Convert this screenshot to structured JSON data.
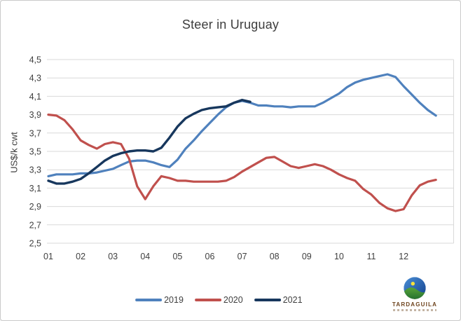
{
  "chart_data": {
    "type": "line",
    "title": "Steer in Uruguay",
    "ylabel": "US$/k cwt",
    "xlabel": "",
    "ylim": [
      2.5,
      4.5
    ],
    "grid": "horizontal",
    "legend_position": "bottom",
    "y_ticks": [
      {
        "label": "4,5",
        "value": 4.5
      },
      {
        "label": "4,3",
        "value": 4.3
      },
      {
        "label": "4,1",
        "value": 4.1
      },
      {
        "label": "3,9",
        "value": 3.9
      },
      {
        "label": "3,7",
        "value": 3.7
      },
      {
        "label": "3,5",
        "value": 3.5
      },
      {
        "label": "3,3",
        "value": 3.3
      },
      {
        "label": "3,1",
        "value": 3.1
      },
      {
        "label": "2,9",
        "value": 2.9
      },
      {
        "label": "2,7",
        "value": 2.7
      },
      {
        "label": "2,5",
        "value": 2.5
      }
    ],
    "x_ticks": [
      {
        "label": "01",
        "value": 1
      },
      {
        "label": "02",
        "value": 2
      },
      {
        "label": "03",
        "value": 3
      },
      {
        "label": "04",
        "value": 4
      },
      {
        "label": "05",
        "value": 5
      },
      {
        "label": "06",
        "value": 6
      },
      {
        "label": "07",
        "value": 7
      },
      {
        "label": "08",
        "value": 8
      },
      {
        "label": "09",
        "value": 9
      },
      {
        "label": "10",
        "value": 10
      },
      {
        "label": "11",
        "value": 11
      },
      {
        "label": "12",
        "value": 12
      }
    ],
    "x_unit": "month (01-12, sub-monthly sampling)",
    "series": [
      {
        "name": "2019",
        "color": "#4f81bd",
        "width": 3.2,
        "x_start": 1,
        "x_step": 0.25,
        "values": [
          3.23,
          3.25,
          3.25,
          3.25,
          3.26,
          3.26,
          3.27,
          3.29,
          3.31,
          3.35,
          3.39,
          3.4,
          3.4,
          3.38,
          3.35,
          3.33,
          3.41,
          3.53,
          3.62,
          3.72,
          3.81,
          3.9,
          3.98,
          4.03,
          4.05,
          4.03,
          4.0,
          4.0,
          3.99,
          3.99,
          3.98,
          3.99,
          3.99,
          3.99,
          4.03,
          4.08,
          4.13,
          4.2,
          4.25,
          4.28,
          4.3,
          4.32,
          4.34,
          4.31,
          4.21,
          4.12,
          4.03,
          3.95,
          3.89
        ]
      },
      {
        "name": "2020",
        "color": "#c0504d",
        "width": 3.2,
        "x_start": 1,
        "x_step": 0.25,
        "values": [
          3.9,
          3.89,
          3.84,
          3.74,
          3.62,
          3.57,
          3.53,
          3.58,
          3.6,
          3.58,
          3.42,
          3.12,
          2.98,
          3.12,
          3.23,
          3.21,
          3.18,
          3.18,
          3.17,
          3.17,
          3.17,
          3.17,
          3.18,
          3.22,
          3.28,
          3.33,
          3.38,
          3.43,
          3.44,
          3.39,
          3.34,
          3.32,
          3.34,
          3.36,
          3.34,
          3.3,
          3.25,
          3.21,
          3.18,
          3.09,
          3.03,
          2.94,
          2.88,
          2.85,
          2.87,
          3.02,
          3.13,
          3.17,
          3.19
        ]
      },
      {
        "name": "2021",
        "color": "#17375d",
        "width": 3.4,
        "x_start": 1,
        "x_step": 0.25,
        "values": [
          3.18,
          3.15,
          3.15,
          3.17,
          3.2,
          3.26,
          3.33,
          3.4,
          3.45,
          3.48,
          3.5,
          3.51,
          3.51,
          3.5,
          3.54,
          3.65,
          3.77,
          3.86,
          3.91,
          3.95,
          3.97,
          3.98,
          3.99,
          4.03,
          4.06,
          4.04
        ]
      }
    ]
  },
  "logo": {
    "brand": "TARDAGUILA",
    "icon": "globe-landscape",
    "colors": {
      "sky": "#1c4e9c",
      "hill": "#3c8c2f",
      "sun": "#f7e23c",
      "text": "#6d431d"
    }
  }
}
